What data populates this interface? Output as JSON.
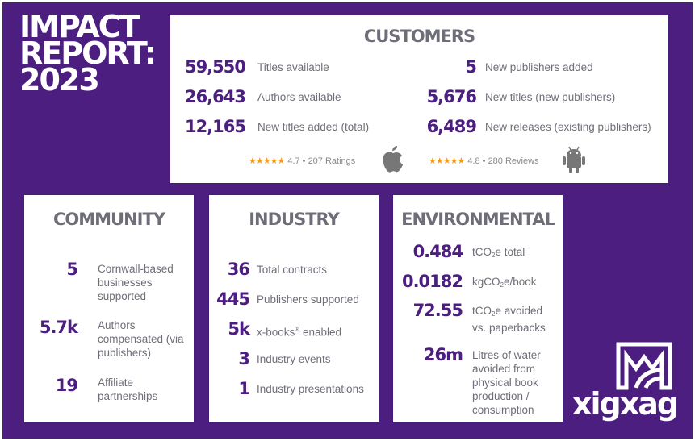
{
  "title": {
    "line1": "IMPACT",
    "line2": "REPORT:",
    "line3": "2023"
  },
  "customers": {
    "heading": "CUSTOMERS",
    "left": [
      {
        "value": "59,550",
        "label": "Titles available"
      },
      {
        "value": "26,643",
        "label": "Authors available"
      },
      {
        "value": "12,165",
        "label": "New titles added (total)"
      }
    ],
    "right": [
      {
        "value": "5",
        "label": "New publishers added"
      },
      {
        "value": "5,676",
        "label": "New titles (new publishers)"
      },
      {
        "value": "6,489",
        "label": "New releases (existing publishers)"
      }
    ],
    "apple": {
      "stars": "★★★★★",
      "rating": 4.7,
      "rating_text": "4.7 • 207 Ratings",
      "icon": "apple-icon"
    },
    "android": {
      "stars": "★★★★★",
      "rating": 4.8,
      "rating_text": "4.8 • 280 Reviews",
      "icon": "android-icon"
    }
  },
  "community": {
    "heading": "COMMUNITY",
    "items": [
      {
        "value": "5",
        "label": "Cornwall-based businesses supported"
      },
      {
        "value": "5.7k",
        "label": "Authors compensated (via publishers)"
      },
      {
        "value": "19",
        "label": "Affiliate partnerships"
      }
    ]
  },
  "industry": {
    "heading": "INDUSTRY",
    "items": [
      {
        "value": "36",
        "label": "Total contracts"
      },
      {
        "value": "445",
        "label": "Publishers supported"
      },
      {
        "value": "5k",
        "label": "x-books",
        "label_sup": "®",
        "label_after": " enabled"
      },
      {
        "value": "3",
        "label": "Industry events"
      },
      {
        "value": "1",
        "label": "Industry presentations"
      }
    ]
  },
  "environmental": {
    "heading": "ENVIRONMENTAL",
    "items": [
      {
        "value": "0.484",
        "pre": "tCO",
        "sub": "2",
        "post": "e total"
      },
      {
        "value": "0.0182",
        "pre": "kgCO",
        "sub": "2",
        "post": "e/book"
      },
      {
        "value": "72.55",
        "pre": "tCO",
        "sub": "2",
        "post": "e avoided vs. paperbacks"
      },
      {
        "value": "26m",
        "pre": "Litres of water avoided from physical book production / consumption",
        "sub": "",
        "post": ""
      }
    ]
  },
  "logo": {
    "text": "xigxag",
    "icon": "xigxag-logo-icon"
  },
  "colors": {
    "brand_purple": "#4b1e80",
    "text_gray": "#6e6e78",
    "star_orange": "#f39a1c"
  }
}
